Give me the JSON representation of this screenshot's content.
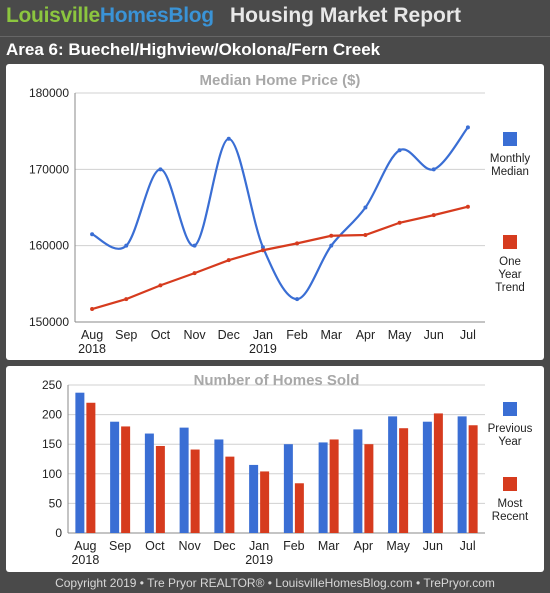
{
  "header": {
    "brand_part1": "Louisville",
    "brand_part2": "HomesBlog",
    "report_title": "Housing Market Report"
  },
  "area_title": "Area 6: Buechel/Highview/Okolona/Fern Creek",
  "footer": "Copyright 2019 • Tre Pryor REALTOR® • LouisvilleHomesBlog.com • TrePryor.com",
  "chart_data": [
    {
      "type": "line",
      "title": "Median Home Price ($)",
      "categories": [
        "Aug",
        "Sep",
        "Oct",
        "Nov",
        "Dec",
        "Jan",
        "Feb",
        "Mar",
        "Apr",
        "May",
        "Jun",
        "Jul"
      ],
      "year_labels": [
        {
          "category": "Aug",
          "label": "2018"
        },
        {
          "category": "Jan",
          "label": "2019"
        }
      ],
      "ylim": [
        150000,
        180000
      ],
      "yticks": [
        150000,
        160000,
        170000,
        180000
      ],
      "grid": true,
      "legend_position": "right",
      "series": [
        {
          "name": "Monthly Median",
          "color": "#3a6ed4",
          "values": [
            161500,
            160000,
            170000,
            160000,
            174000,
            159800,
            153000,
            160000,
            165000,
            172500,
            170000,
            175500
          ]
        },
        {
          "name": "One Year Trend",
          "color": "#d63b1e",
          "values": [
            151700,
            153000,
            154800,
            156400,
            158100,
            159400,
            160300,
            161300,
            161400,
            163000,
            164000,
            165100
          ]
        }
      ]
    },
    {
      "type": "bar",
      "title": "Number of Homes Sold",
      "categories": [
        "Aug",
        "Sep",
        "Oct",
        "Nov",
        "Dec",
        "Jan",
        "Feb",
        "Mar",
        "Apr",
        "May",
        "Jun",
        "Jul"
      ],
      "year_labels": [
        {
          "category": "Aug",
          "label": "2018"
        },
        {
          "category": "Jan",
          "label": "2019"
        }
      ],
      "ylim": [
        0,
        250
      ],
      "yticks": [
        0,
        50,
        100,
        150,
        200,
        250
      ],
      "grid": true,
      "legend_position": "right",
      "series": [
        {
          "name": "Previous Year",
          "color": "#3a6ed4",
          "values": [
            237,
            188,
            168,
            178,
            158,
            115,
            150,
            153,
            175,
            197,
            188,
            197
          ]
        },
        {
          "name": "Most Recent",
          "color": "#d63b1e",
          "values": [
            220,
            180,
            147,
            141,
            129,
            104,
            84,
            158,
            150,
            177,
            202,
            182
          ]
        }
      ]
    }
  ]
}
